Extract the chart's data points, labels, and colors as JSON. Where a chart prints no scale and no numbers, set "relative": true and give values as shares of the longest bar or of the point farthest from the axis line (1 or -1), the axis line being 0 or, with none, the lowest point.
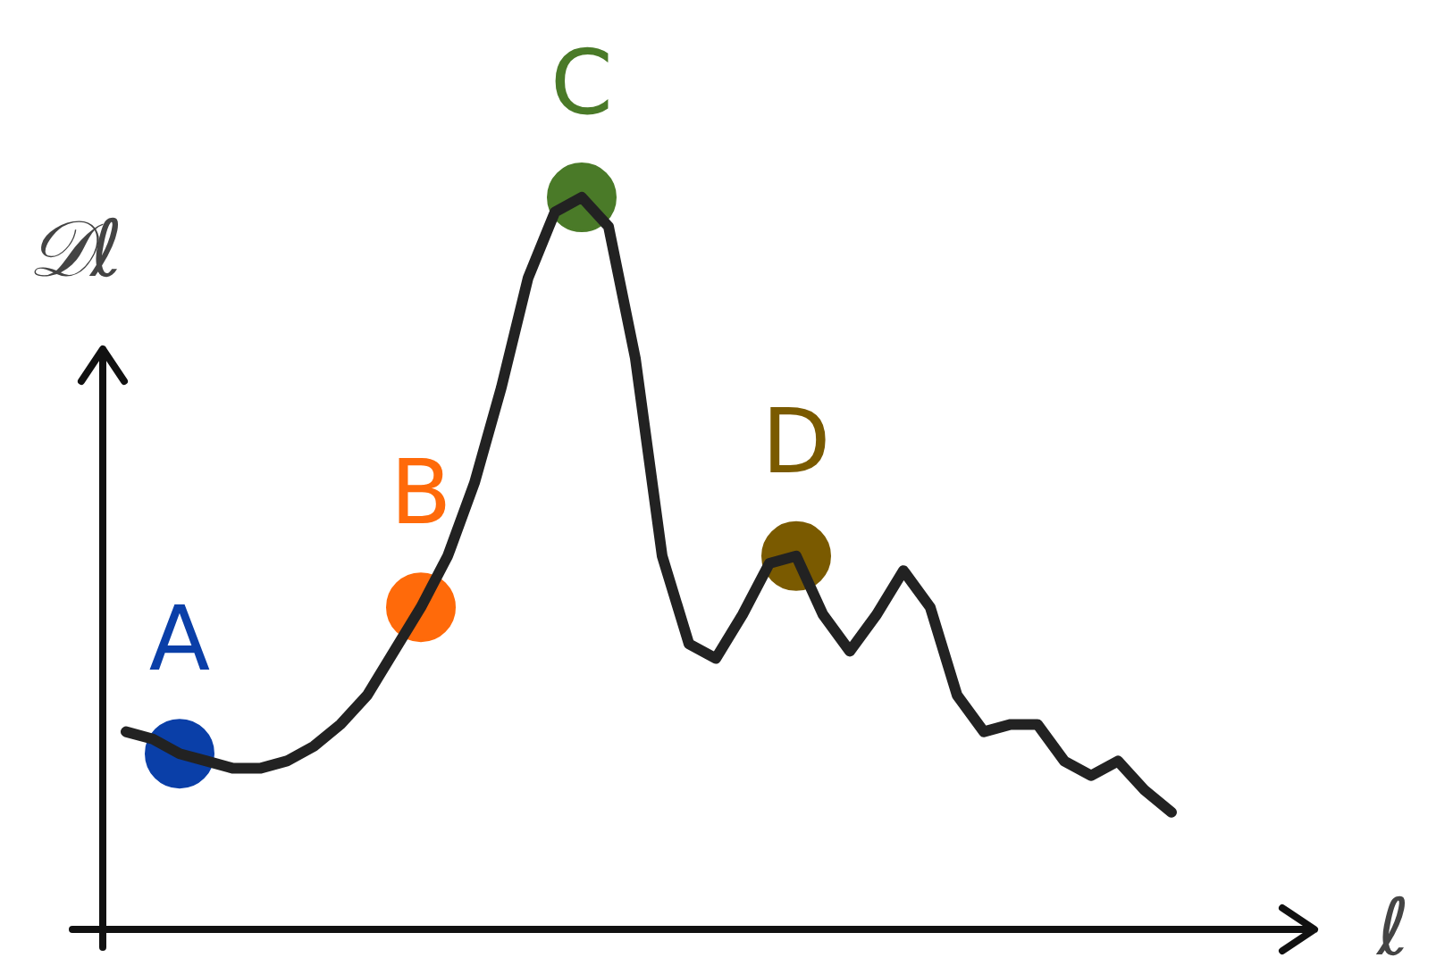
{
  "chart_data": {
    "type": "line",
    "relative": true,
    "xlabel": "ℓ",
    "ylabel": "𝒟ℓ",
    "grid": false,
    "tick_labels": false,
    "categories": [
      null,
      null,
      null,
      null,
      null,
      null,
      null,
      null,
      null,
      null,
      null,
      null,
      null,
      null,
      null,
      null,
      null,
      null,
      null,
      null,
      null,
      null,
      null,
      null,
      null,
      null,
      null,
      null,
      null,
      null,
      null,
      null,
      null,
      null,
      null,
      null,
      null,
      null,
      null,
      null
    ],
    "series": [
      {
        "color": "#222222",
        "values": [
          0.27,
          0.26,
          0.24,
          0.23,
          0.22,
          0.22,
          0.23,
          0.25,
          0.28,
          0.32,
          0.38,
          0.44,
          0.51,
          0.61,
          0.74,
          0.89,
          0.98,
          1.0,
          0.96,
          0.78,
          0.51,
          0.39,
          0.37,
          0.43,
          0.5,
          0.51,
          0.43,
          0.38,
          0.43,
          0.49,
          0.44,
          0.32,
          0.27,
          0.28,
          0.28,
          0.23,
          0.21,
          0.23,
          0.19,
          0.16
        ],
        "colors": [
          null,
          null,
          "#0a3fa8",
          null,
          null,
          null,
          null,
          null,
          null,
          null,
          null,
          "#ff6a0a",
          null,
          null,
          null,
          null,
          null,
          "#4a7a28",
          null,
          null,
          null,
          null,
          null,
          null,
          null,
          "#7a5a00",
          null,
          null,
          null,
          null,
          null,
          null,
          null,
          null,
          null,
          null,
          null,
          null,
          null,
          null
        ]
      }
    ],
    "annotations": [
      {
        "text": "A",
        "y": 0.24
      },
      {
        "text": "B",
        "y": 0.44
      },
      {
        "text": "C",
        "y": 1.0
      },
      {
        "text": "D",
        "y": 0.51
      }
    ]
  }
}
